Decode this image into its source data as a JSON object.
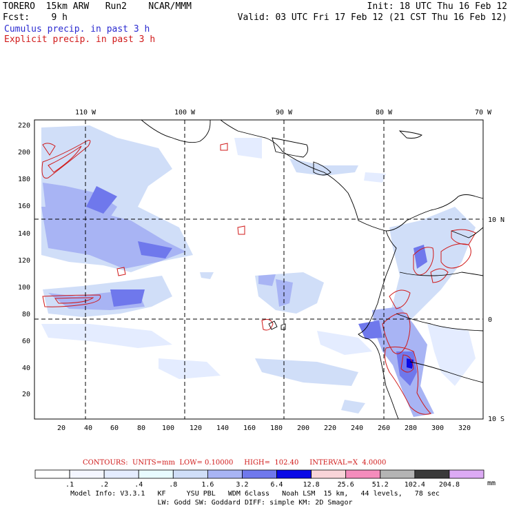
{
  "header": {
    "line1_left": "TORERO  15km ARW   Run2    NCAR/MMM",
    "line1_right": "Init: 18 UTC Thu 16 Feb 12",
    "line2_left": "Fcst:    9 h",
    "line2_right": "Valid: 03 UTC Fri 17 Feb 12 (21 CST Thu 16 Feb 12)",
    "legend_cumulus": "Cumulus precip. in past 3 h",
    "legend_explicit": "Explicit precip. in past 3 h"
  },
  "map": {
    "lon_labels": [
      "110 W",
      "100 W",
      "90 W",
      "80 W",
      "70 W"
    ],
    "lat_labels": [
      "10 N",
      "0",
      "10 S"
    ],
    "x_ticks": [
      "20",
      "40",
      "60",
      "80",
      "100",
      "120",
      "140",
      "160",
      "180",
      "200",
      "220",
      "240",
      "260",
      "280",
      "300",
      "320"
    ],
    "y_ticks": [
      "20",
      "40",
      "60",
      "80",
      "100",
      "120",
      "140",
      "160",
      "180",
      "200",
      "220"
    ]
  },
  "contours": {
    "units_text": "CONTOURS:  UNITS=mm  LOW= 0.10000     HIGH=  102.40     INTERVAL=X  4.0000"
  },
  "colorbar": {
    "labels": [
      ".1",
      ".2",
      ".4",
      ".8",
      "1.6",
      "3.2",
      "6.4",
      "12.8",
      "25.6",
      "51.2",
      "102.4",
      "204.8"
    ],
    "unit": "mm",
    "colors": [
      "#ffffff",
      "#f4f6ff",
      "#e4ecff",
      "#e8fbff",
      "#d0def8",
      "#a8b4f4",
      "#6f78ec",
      "#0a0ae6",
      "#f8d4d8",
      "#f48cbc",
      "#b4b4b4",
      "#3a3a3a",
      "#dcaaf4"
    ]
  },
  "model_info": {
    "line1": "Model Info: V3.3.1   KF     YSU PBL   WDM 6class   Noah LSM  15 km,   44 levels,   78 sec",
    "line2": "LW: Godd SW: Goddard DIFF: simple KM: 2D Smagor"
  }
}
